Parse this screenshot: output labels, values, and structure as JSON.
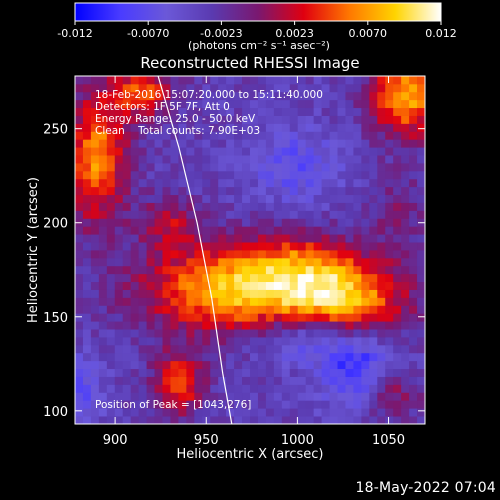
{
  "chart_data": {
    "type": "heatmap",
    "title": "Reconstructed RHESSI Image",
    "xlabel": "Heliocentric X (arcsec)",
    "ylabel": "Heliocentric Y (arcsec)",
    "xlim": [
      878,
      1070
    ],
    "ylim": [
      93,
      278
    ],
    "x_ticks": [
      900,
      950,
      1000,
      1050
    ],
    "y_ticks": [
      100,
      150,
      200,
      250
    ],
    "colorbar": {
      "min": -0.012,
      "max": 0.012,
      "ticks": [
        "-0.012",
        "-0.0070",
        "-0.0023",
        "0.0023",
        "0.0070",
        "0.012"
      ],
      "unit_label": "(photons cm⁻² s⁻¹ asec⁻²)"
    },
    "annotations": [
      "18-Feb-2016 15:07:20.000 to 15:11:40.000",
      "Detectors: 1F 5F 7F, Att 0",
      "Energy Range: 25.0 - 50.0 keV",
      "Clean    Total counts: 7.90E+03"
    ],
    "peak_label": "Position of Peak = [1043,276]",
    "peak_position": [
      1043,
      276
    ],
    "limb_curve": [
      [
        923,
        280
      ],
      [
        935,
        240
      ],
      [
        945,
        200
      ],
      [
        953,
        160
      ],
      [
        959,
        120
      ],
      [
        964,
        93
      ]
    ],
    "sources": [
      {
        "x": 965,
        "y": 165,
        "amp": 0.012,
        "sx": 35,
        "sy": 16
      },
      {
        "x": 1025,
        "y": 160,
        "amp": 0.011,
        "sx": 25,
        "sy": 15
      },
      {
        "x": 1060,
        "y": 268,
        "amp": 0.011,
        "sx": 14,
        "sy": 16
      },
      {
        "x": 890,
        "y": 235,
        "amp": 0.01,
        "sx": 12,
        "sy": 25
      },
      {
        "x": 915,
        "y": 270,
        "amp": 0.008,
        "sx": 12,
        "sy": 10
      },
      {
        "x": 935,
        "y": 115,
        "amp": 0.008,
        "sx": 10,
        "sy": 12
      },
      {
        "x": 930,
        "y": 200,
        "amp": 0.005,
        "sx": 12,
        "sy": 10
      },
      {
        "x": 1050,
        "y": 110,
        "amp": 0.006,
        "sx": 12,
        "sy": 10
      },
      {
        "x": 1055,
        "y": 205,
        "amp": 0.003,
        "sx": 12,
        "sy": 14
      },
      {
        "x": 1000,
        "y": 180,
        "amp": 0.004,
        "sx": 20,
        "sy": 12
      },
      {
        "x": 1005,
        "y": 140,
        "amp": -0.006,
        "sx": 20,
        "sy": 10
      },
      {
        "x": 1035,
        "y": 120,
        "amp": -0.007,
        "sx": 15,
        "sy": 14
      },
      {
        "x": 1000,
        "y": 230,
        "amp": -0.004,
        "sx": 18,
        "sy": 14
      },
      {
        "x": 880,
        "y": 110,
        "amp": -0.004,
        "sx": 10,
        "sy": 14
      }
    ],
    "background_level": -0.0035,
    "noise_amplitude": 0.0015
  },
  "timestamp": "18-May-2022 07:04"
}
